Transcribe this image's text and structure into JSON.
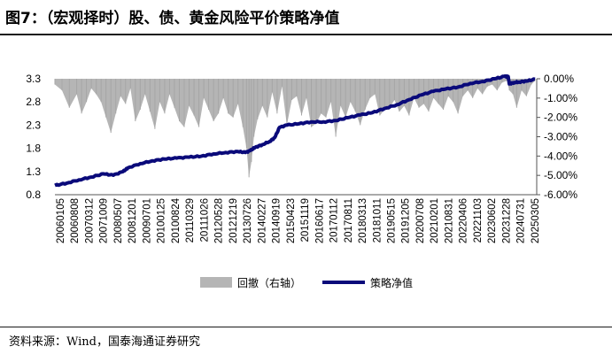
{
  "title": "图7：（宏观择时）股、债、黄金风险平价策略净值",
  "source": "资料来源：Wind，国泰海通证券研究",
  "colors": {
    "nav": "#0a0a7a",
    "drawdown": "#b5b5b5",
    "axis": "#555555"
  },
  "chart_data": {
    "type": "line+area",
    "title": "",
    "legend_position": "bottom-center",
    "grid": false,
    "left_axis": {
      "ylim": [
        0.8,
        3.3
      ],
      "ticks": [
        0.8,
        1.3,
        1.8,
        2.3,
        2.8,
        3.3
      ],
      "tick_labels": [
        "0.8",
        "1.3",
        "1.8",
        "2.3",
        "2.8",
        "3.3"
      ]
    },
    "right_axis": {
      "ylim": [
        -6,
        0
      ],
      "ticks": [
        0,
        -1,
        -2,
        -3,
        -4,
        -5,
        -6
      ],
      "tick_labels": [
        "0.00%",
        "-1.00%",
        "-2.00%",
        "-3.00%",
        "-4.00%",
        "-5.00%",
        "-6.00%"
      ],
      "inverted": true
    },
    "x_tick_labels": [
      "20060105",
      "20060808",
      "20070312",
      "20071009",
      "20080507",
      "20081201",
      "20090701",
      "20100125",
      "20100824",
      "20110329",
      "20111026",
      "20120528",
      "20121219",
      "20130726",
      "20140227",
      "20140919",
      "20150423",
      "20151119",
      "20160617",
      "20170112",
      "20170811",
      "20180313",
      "20181011",
      "20190515",
      "20191205",
      "20200708",
      "20210201",
      "20210831",
      "20220406",
      "20221103",
      "20230602",
      "20231228",
      "20240731",
      "20250305"
    ],
    "series": [
      {
        "name": "回撤（右轴）",
        "type": "area",
        "axis": "right",
        "x": [
          2006.01,
          2006.3,
          2006.6,
          2006.9,
          2007.1,
          2007.3,
          2007.5,
          2007.7,
          2007.9,
          2008.1,
          2008.3,
          2008.5,
          2008.7,
          2008.9,
          2009.1,
          2009.3,
          2009.5,
          2009.7,
          2009.9,
          2010.1,
          2010.3,
          2010.5,
          2010.7,
          2010.9,
          2011.1,
          2011.3,
          2011.5,
          2011.7,
          2011.9,
          2012.1,
          2012.3,
          2012.5,
          2012.7,
          2012.9,
          2013.1,
          2013.3,
          2013.5,
          2013.7,
          2013.85,
          2013.95,
          2014.05,
          2014.15,
          2014.3,
          2014.5,
          2014.7,
          2014.9,
          2015.1,
          2015.3,
          2015.5,
          2015.7,
          2015.9,
          2016.1,
          2016.3,
          2016.5,
          2016.7,
          2016.9,
          2017.1,
          2017.3,
          2017.5,
          2017.7,
          2017.9,
          2018.1,
          2018.3,
          2018.5,
          2018.7,
          2018.9,
          2019.1,
          2019.3,
          2019.5,
          2019.7,
          2019.9,
          2020.1,
          2020.3,
          2020.5,
          2020.7,
          2020.9,
          2021.1,
          2021.3,
          2021.5,
          2021.7,
          2021.9,
          2022.1,
          2022.3,
          2022.5,
          2022.7,
          2022.9,
          2023.1,
          2023.3,
          2023.5,
          2023.7,
          2023.9,
          2024.1,
          2024.3,
          2024.5,
          2024.6,
          2024.75,
          2024.9,
          2025.1,
          2025.3,
          2025.5,
          2025.65
        ],
        "values": [
          -0.3,
          -0.6,
          -1.5,
          -0.8,
          -1.8,
          -1.2,
          -0.5,
          -0.8,
          -1.2,
          -2.0,
          -2.8,
          -1.8,
          -0.9,
          -1.3,
          -0.5,
          -2.2,
          -1.6,
          -0.8,
          -1.7,
          -2.6,
          -1.2,
          -1.8,
          -0.8,
          -1.5,
          -2.2,
          -2.5,
          -1.4,
          -1.9,
          -2.5,
          -1.0,
          -1.6,
          -2.2,
          -1.8,
          -1.0,
          -1.8,
          -2.0,
          -1.3,
          -2.5,
          -3.6,
          -5.1,
          -4.3,
          -3.0,
          -2.1,
          -1.4,
          -2.0,
          -0.7,
          -1.8,
          -0.4,
          -2.4,
          -1.1,
          -0.9,
          -1.9,
          -1.0,
          -2.5,
          -2.3,
          -1.8,
          -2.0,
          -1.2,
          -3.0,
          -1.4,
          -2.0,
          -1.2,
          -1.7,
          -2.4,
          -1.6,
          -1.0,
          -0.8,
          -1.9,
          -1.6,
          -1.5,
          -1.1,
          -1.7,
          -1.4,
          -1.9,
          -1.0,
          -1.5,
          -1.3,
          -1.7,
          -1.0,
          -1.3,
          -1.6,
          -0.9,
          -1.2,
          -1.8,
          -0.9,
          -0.6,
          -1.0,
          -0.5,
          -0.8,
          -0.4,
          -0.3,
          -0.6,
          -0.2,
          -0.1,
          -0.6,
          -0.8,
          -1.5,
          -0.6,
          -0.9,
          -0.3,
          -0.1
        ]
      },
      {
        "name": "策略净值",
        "type": "line",
        "axis": "left",
        "x": [
          2006.01,
          2006.5,
          2007.0,
          2007.5,
          2008.0,
          2008.4,
          2008.8,
          2009.0,
          2009.5,
          2010.0,
          2010.5,
          2011.0,
          2011.5,
          2012.0,
          2012.5,
          2013.0,
          2013.5,
          2013.8,
          2014.0,
          2014.2,
          2014.5,
          2014.8,
          2015.0,
          2015.2,
          2015.5,
          2016.0,
          2016.5,
          2017.0,
          2017.5,
          2018.0,
          2018.5,
          2019.0,
          2019.5,
          2020.0,
          2020.5,
          2021.0,
          2021.5,
          2022.0,
          2022.5,
          2023.0,
          2023.5,
          2024.0,
          2024.4,
          2024.55,
          2024.6,
          2024.8,
          2025.0,
          2025.3,
          2025.65
        ],
        "values": [
          1.0,
          1.05,
          1.12,
          1.18,
          1.25,
          1.22,
          1.3,
          1.38,
          1.47,
          1.53,
          1.57,
          1.59,
          1.61,
          1.63,
          1.68,
          1.71,
          1.73,
          1.71,
          1.75,
          1.82,
          1.88,
          1.95,
          2.03,
          2.25,
          2.3,
          2.33,
          2.37,
          2.37,
          2.4,
          2.46,
          2.52,
          2.57,
          2.66,
          2.74,
          2.85,
          2.95,
          3.03,
          3.08,
          3.12,
          3.2,
          3.24,
          3.3,
          3.35,
          3.35,
          3.19,
          3.22,
          3.23,
          3.25,
          3.29
        ]
      }
    ]
  }
}
